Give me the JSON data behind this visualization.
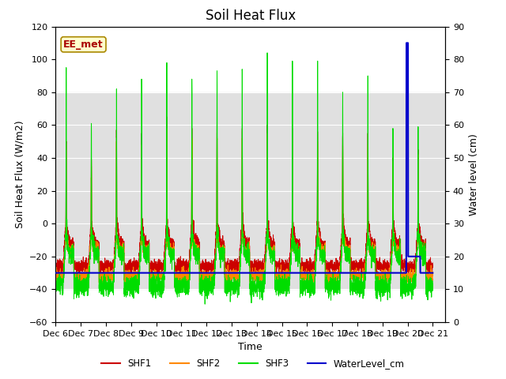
{
  "title": "Soil Heat Flux",
  "ylabel_left": "Soil Heat Flux (W/m2)",
  "ylabel_right": "Water level (cm)",
  "xlabel": "Time",
  "annotation_text": "EE_met",
  "ylim_left": [
    -60,
    120
  ],
  "ylim_right": [
    0,
    90
  ],
  "shf1_color": "#cc0000",
  "shf2_color": "#ff8800",
  "shf3_color": "#00dd00",
  "water_color": "#0000cc",
  "bg_band_color": "#e0e0e0",
  "legend_labels": [
    "SHF1",
    "SHF2",
    "SHF3",
    "WaterLevel_cm"
  ],
  "title_fontsize": 12,
  "label_fontsize": 9,
  "tick_fontsize": 8,
  "x_tick_labels": [
    "Dec 6",
    "Dec 7",
    "Dec 8",
    "Dec 9",
    "Dec 10",
    "Dec 11",
    "Dec 12",
    "Dec 13",
    "Dec 14",
    "Dec 15",
    "Dec 16",
    "Dec 17",
    "Dec 18",
    "Dec 19",
    "Dec 20",
    "Dec 21"
  ],
  "yticks_left": [
    -60,
    -40,
    -20,
    0,
    20,
    40,
    60,
    80,
    100,
    120
  ],
  "yticks_right": [
    0,
    10,
    20,
    30,
    40,
    50,
    60,
    70,
    80,
    90
  ]
}
